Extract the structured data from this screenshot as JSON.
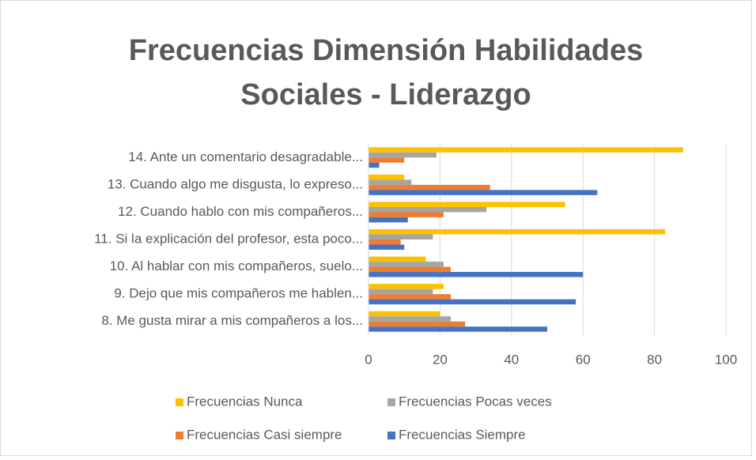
{
  "chart_data": {
    "type": "bar",
    "orientation": "horizontal",
    "title": [
      "Frecuencias Dimensión Habilidades",
      "Sociales - Liderazgo"
    ],
    "categories": [
      "8. Me gusta mirar a mis compañeros a los...",
      "9. Dejo que mis compañeros me hablen...",
      "10. Al hablar con mis compañeros, suelo...",
      "11. Si la explicación del profesor, esta poco...",
      "12. Cuando hablo con mis compañeros...",
      "13. Cuando algo me disgusta, lo expreso...",
      "14. Ante un comentario desagradable..."
    ],
    "series": [
      {
        "name": "Frecuencias Nunca",
        "color": "#ffc000",
        "values": [
          20,
          21,
          16,
          83,
          55,
          10,
          88
        ]
      },
      {
        "name": "Frecuencias Pocas veces",
        "color": "#a5a5a5",
        "values": [
          23,
          18,
          21,
          18,
          33,
          12,
          19
        ]
      },
      {
        "name": "Frecuencias Casi siempre",
        "color": "#ed7d31",
        "values": [
          27,
          23,
          23,
          9,
          21,
          34,
          10
        ]
      },
      {
        "name": "Frecuencias Siempre",
        "color": "#4472c4",
        "values": [
          50,
          58,
          60,
          10,
          11,
          64,
          3
        ]
      }
    ],
    "xlim": [
      0,
      100
    ],
    "xticks": [
      0,
      20,
      40,
      60,
      80,
      100
    ],
    "grid": true,
    "legend": "bottom"
  }
}
